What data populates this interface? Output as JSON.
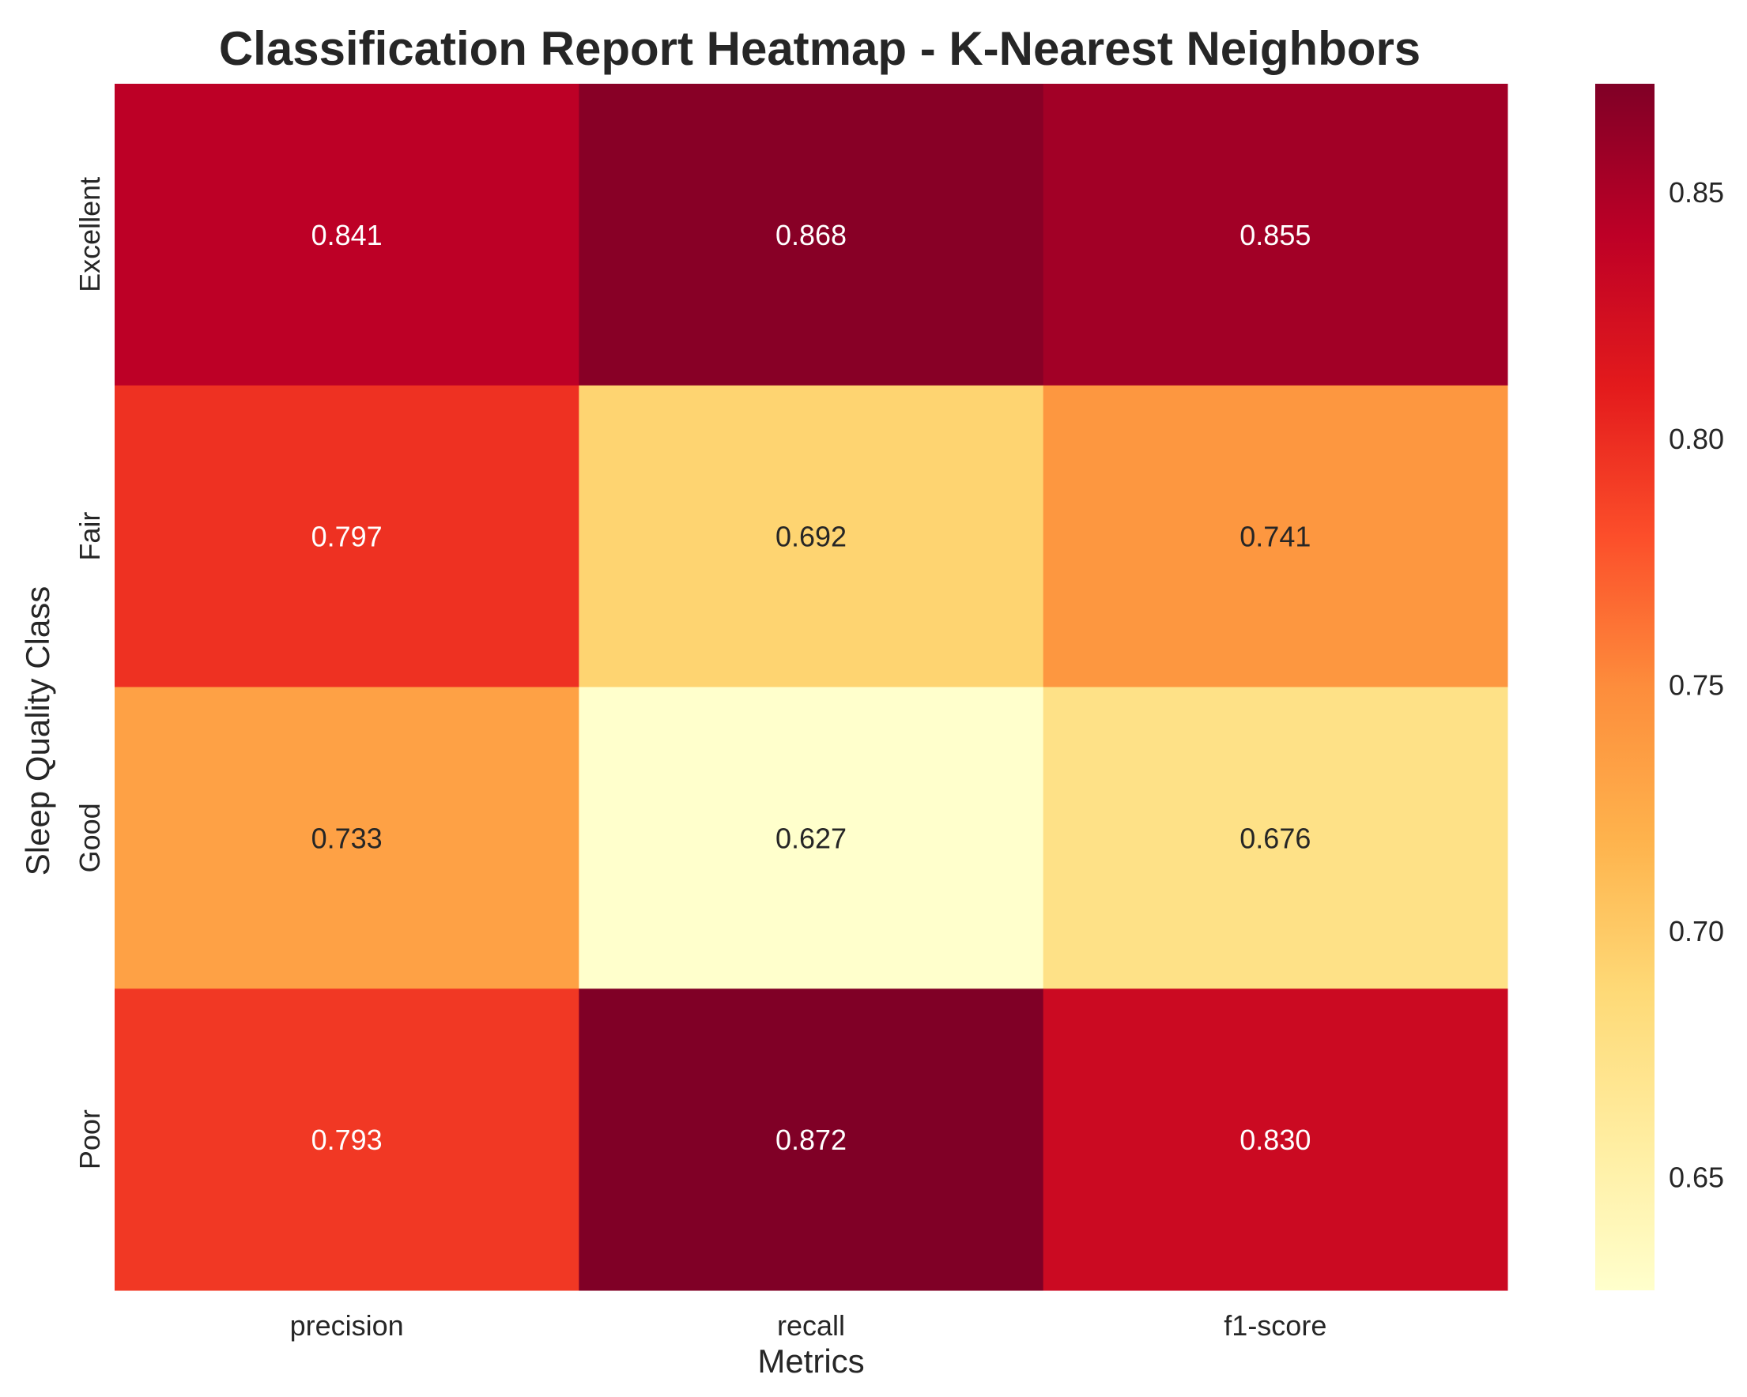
{
  "colors": {
    "colormap": "YlOrRd",
    "text_dark": "#262626",
    "text_light": "#ffffff"
  },
  "chart_data": {
    "type": "heatmap",
    "title": "Classification Report Heatmap - K-Nearest Neighbors",
    "xlabel": "Metrics",
    "ylabel": "Sleep Quality Class",
    "x_categories": [
      "precision",
      "recall",
      "f1-score"
    ],
    "y_categories": [
      "Excellent",
      "Fair",
      "Good",
      "Poor"
    ],
    "values": [
      [
        0.841,
        0.868,
        0.855
      ],
      [
        0.797,
        0.692,
        0.741
      ],
      [
        0.733,
        0.627,
        0.676
      ],
      [
        0.793,
        0.872,
        0.83
      ]
    ],
    "annotations": [
      [
        "0.841",
        "0.868",
        "0.855"
      ],
      [
        "0.797",
        "0.692",
        "0.741"
      ],
      [
        "0.733",
        "0.627",
        "0.676"
      ],
      [
        "0.793",
        "0.872",
        "0.830"
      ]
    ],
    "colorbar": {
      "range": [
        0.627,
        0.872
      ],
      "ticks": [
        0.65,
        0.7,
        0.75,
        0.8,
        0.85
      ],
      "tick_labels": [
        "0.65",
        "0.70",
        "0.75",
        "0.80",
        "0.85"
      ]
    }
  }
}
